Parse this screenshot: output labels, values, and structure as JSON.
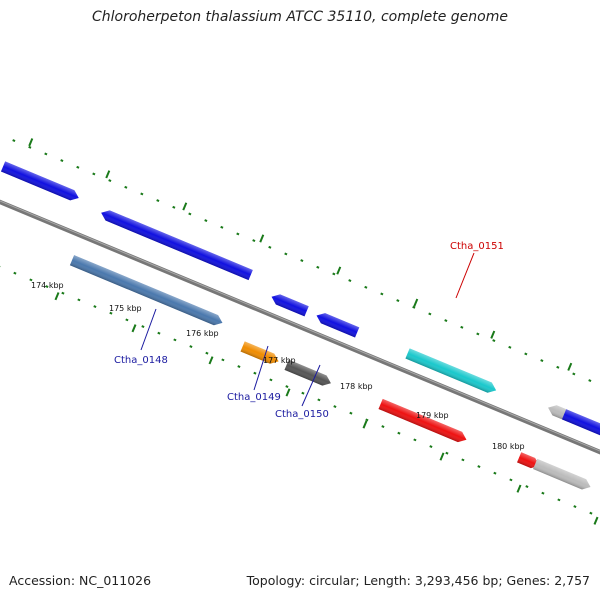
{
  "title": "Chloroherpeton thalassium ATCC 35110, complete genome",
  "footer": {
    "accession": "Accession: NC_011026",
    "topology": "Topology: circular; Length: 3,293,456 bp; Genes: 2,757"
  },
  "kbp_labels": [
    "174 kbp",
    "175 kbp",
    "176 kbp",
    "177 kbp",
    "178 kbp",
    "179 kbp",
    "180 kbp"
  ],
  "genes": [
    {
      "name": "",
      "color": "#1010e0",
      "strand": "forward",
      "lane": "outer",
      "label": null
    },
    {
      "name": "",
      "color": "#1010e0",
      "strand": "reverse",
      "lane": "outer",
      "label": null
    },
    {
      "name": "Ctha_0148",
      "color": "#4a78ad",
      "strand": "forward",
      "lane": "inner",
      "label": "Ctha_0148",
      "label_color": "#1a1aa0"
    },
    {
      "name": "",
      "color": "#1010e0",
      "strand": "reverse",
      "lane": "outer",
      "label": null
    },
    {
      "name": "Ctha_0149",
      "color": "#f08c00",
      "strand": "forward",
      "lane": "inner",
      "label": "Ctha_0149",
      "label_color": "#1a1aa0"
    },
    {
      "name": "",
      "color": "#1010e0",
      "strand": "reverse",
      "lane": "outer",
      "label": null
    },
    {
      "name": "Ctha_0150",
      "color": "#555555",
      "strand": "forward",
      "lane": "inner",
      "label": "Ctha_0150",
      "label_color": "#1a1aa0"
    },
    {
      "name": "Ctha_0151",
      "color": "#1ac8cc",
      "strand": "forward",
      "lane": "outer",
      "label": "Ctha_0151",
      "label_color": "#cc0000"
    },
    {
      "name": "",
      "color": "#ee1111",
      "strand": "forward",
      "lane": "inner",
      "label": null
    },
    {
      "name": "",
      "color": "#bbbbbb",
      "strand": "reverse",
      "lane": "outer",
      "label": null
    },
    {
      "name": "",
      "color": "#ee1111",
      "strand": "forward",
      "lane": "inner",
      "label": null
    },
    {
      "name": "",
      "color": "#1010e0",
      "strand": "forward",
      "lane": "outer",
      "label": null
    },
    {
      "name": "",
      "color": "#bbbbbb",
      "strand": "forward",
      "lane": "inner",
      "label": null
    }
  ],
  "colors": {
    "backbone": "#777777",
    "ticks": "#1a7a1a"
  }
}
